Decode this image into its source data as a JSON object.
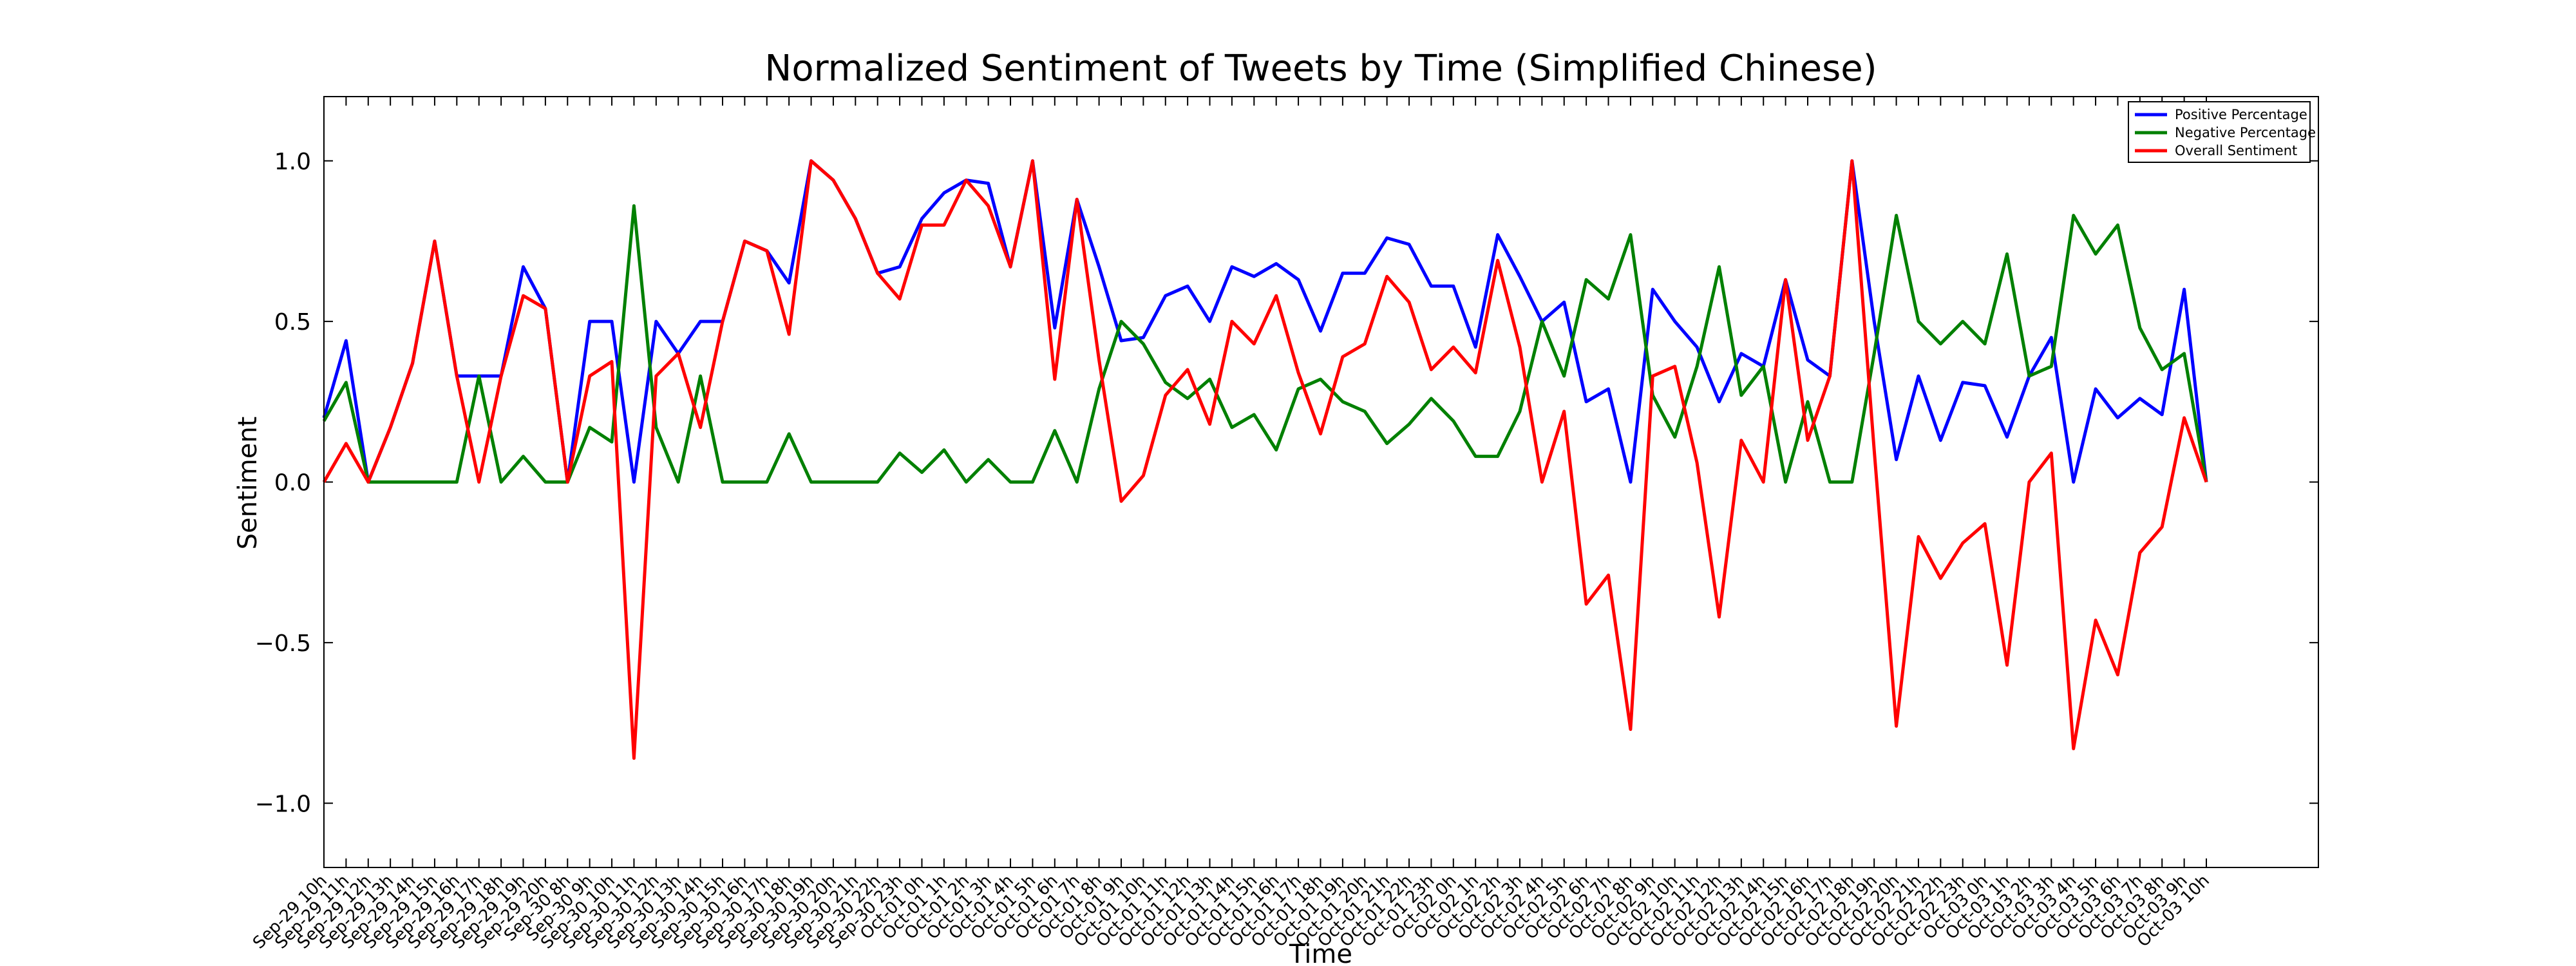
{
  "chart_data": {
    "type": "line",
    "title": "Normalized Sentiment of Tweets by Time (Simplified Chinese)",
    "x_label": "Time",
    "y_label": "Sentiment",
    "legend": "upper right",
    "grid": false,
    "categories": [
      "Sep-29 10h",
      "Sep-29 11h",
      "Sep-29 12h",
      "Sep-29 13h",
      "Sep-29 14h",
      "Sep-29 15h",
      "Sep-29 16h",
      "Sep-29 17h",
      "Sep-29 18h",
      "Sep-29 19h",
      "Sep-29 20h",
      "Sep-30 8h",
      "Sep-30 9h",
      "Sep-30 10h",
      "Sep-30 11h",
      "Sep-30 12h",
      "Sep-30 13h",
      "Sep-30 14h",
      "Sep-30 15h",
      "Sep-30 16h",
      "Sep-30 17h",
      "Sep-30 18h",
      "Sep-30 19h",
      "Sep-30 20h",
      "Sep-30 21h",
      "Sep-30 22h",
      "Sep-30 23h",
      "Oct-01 0h",
      "Oct-01 1h",
      "Oct-01 2h",
      "Oct-01 3h",
      "Oct-01 4h",
      "Oct-01 5h",
      "Oct-01 6h",
      "Oct-01 7h",
      "Oct-01 8h",
      "Oct-01 9h",
      "Oct-01 10h",
      "Oct-01 11h",
      "Oct-01 12h",
      "Oct-01 13h",
      "Oct-01 14h",
      "Oct-01 15h",
      "Oct-01 16h",
      "Oct-01 17h",
      "Oct-01 18h",
      "Oct-01 19h",
      "Oct-01 20h",
      "Oct-01 21h",
      "Oct-01 22h",
      "Oct-01 23h",
      "Oct-02 0h",
      "Oct-02 1h",
      "Oct-02 2h",
      "Oct-02 3h",
      "Oct-02 4h",
      "Oct-02 5h",
      "Oct-02 6h",
      "Oct-02 7h",
      "Oct-02 8h",
      "Oct-02 9h",
      "Oct-02 10h",
      "Oct-02 11h",
      "Oct-02 12h",
      "Oct-02 13h",
      "Oct-02 14h",
      "Oct-02 15h",
      "Oct-02 16h",
      "Oct-02 17h",
      "Oct-02 18h",
      "Oct-02 19h",
      "Oct-02 20h",
      "Oct-02 21h",
      "Oct-02 22h",
      "Oct-02 23h",
      "Oct-03 0h",
      "Oct-03 1h",
      "Oct-03 2h",
      "Oct-03 3h",
      "Oct-03 4h",
      "Oct-03 5h",
      "Oct-03 6h",
      "Oct-03 7h",
      "Oct-03 8h",
      "Oct-03 9h",
      "Oct-03 10h"
    ],
    "series": [
      {
        "name": "Positive Percentage",
        "color": "#0000ff",
        "values": [
          0.2,
          0.44,
          0,
          0.17,
          0.37,
          0.75,
          0.33,
          0.33,
          0.33,
          0.67,
          0.54,
          0,
          0.5,
          0.5,
          0,
          0.5,
          0.4,
          0.5,
          0.5,
          0.75,
          0.72,
          0.62,
          1,
          0.94,
          0.82,
          0.65,
          0.67,
          0.82,
          0.9,
          0.94,
          0.93,
          0.67,
          1,
          0.48,
          0.88,
          0.67,
          0.44,
          0.45,
          0.58,
          0.61,
          0.5,
          0.67,
          0.64,
          0.68,
          0.63,
          0.47,
          0.65,
          0.65,
          0.76,
          0.74,
          0.61,
          0.61,
          0.42,
          0.77,
          0.64,
          0.5,
          0.56,
          0.25,
          0.29,
          0,
          0.6,
          0.5,
          0.42,
          0.25,
          0.4,
          0.36,
          0.63,
          0.38,
          0.33,
          1,
          0.5,
          0.07,
          0.33,
          0.13,
          0.31,
          0.3,
          0.14,
          0.33,
          0.45,
          0,
          0.29,
          0.2,
          0.26,
          0.21,
          0.6,
          0
        ]
      },
      {
        "name": "Negative Percentage",
        "color": "#008000",
        "values": [
          0.19,
          0.31,
          0,
          0,
          0,
          0,
          0,
          0.33,
          0,
          0.08,
          0,
          0,
          0.17,
          0.125,
          0.86,
          0.17,
          0,
          0.33,
          0,
          0,
          0,
          0.15,
          0,
          0,
          0,
          0,
          0.09,
          0.03,
          0.1,
          0,
          0.07,
          0,
          0,
          0.16,
          0,
          0.29,
          0.5,
          0.43,
          0.31,
          0.26,
          0.32,
          0.17,
          0.21,
          0.1,
          0.29,
          0.32,
          0.25,
          0.22,
          0.12,
          0.18,
          0.26,
          0.19,
          0.08,
          0.08,
          0.22,
          0.5,
          0.33,
          0.63,
          0.57,
          0.77,
          0.27,
          0.14,
          0.36,
          0.67,
          0.27,
          0.36,
          0,
          0.25,
          0,
          0,
          0.4,
          0.83,
          0.5,
          0.43,
          0.5,
          0.43,
          0.71,
          0.33,
          0.36,
          0.83,
          0.71,
          0.8,
          0.48,
          0.35,
          0.4,
          0
        ]
      },
      {
        "name": "Overall Sentiment",
        "color": "#ff0000",
        "values": [
          0,
          0.12,
          0,
          0.17,
          0.37,
          0.75,
          0.33,
          0,
          0.33,
          0.58,
          0.54,
          0,
          0.33,
          0.375,
          -0.86,
          0.33,
          0.4,
          0.17,
          0.5,
          0.75,
          0.72,
          0.46,
          1,
          0.94,
          0.82,
          0.65,
          0.57,
          0.8,
          0.8,
          0.94,
          0.86,
          0.67,
          1,
          0.32,
          0.88,
          0.38,
          -0.06,
          0.02,
          0.27,
          0.35,
          0.18,
          0.5,
          0.43,
          0.58,
          0.34,
          0.15,
          0.39,
          0.43,
          0.64,
          0.56,
          0.35,
          0.42,
          0.34,
          0.69,
          0.42,
          0,
          0.22,
          -0.38,
          -0.29,
          -0.77,
          0.33,
          0.36,
          0.06,
          -0.42,
          0.13,
          0,
          0.63,
          0.13,
          0.33,
          1,
          0.1,
          -0.76,
          -0.17,
          -0.3,
          -0.19,
          -0.13,
          -0.57,
          0,
          0.09,
          -0.83,
          -0.43,
          -0.6,
          -0.22,
          -0.14,
          0.2,
          0
        ]
      }
    ],
    "ylim": [
      -1.2,
      1.2
    ],
    "yticks": [
      {
        "value": -1.0,
        "label": "−1.0"
      },
      {
        "value": -0.5,
        "label": "−0.5"
      },
      {
        "value": 0.0,
        "label": "0.0"
      },
      {
        "value": 0.5,
        "label": "0.5"
      },
      {
        "value": 1.0,
        "label": "1.0"
      }
    ]
  }
}
